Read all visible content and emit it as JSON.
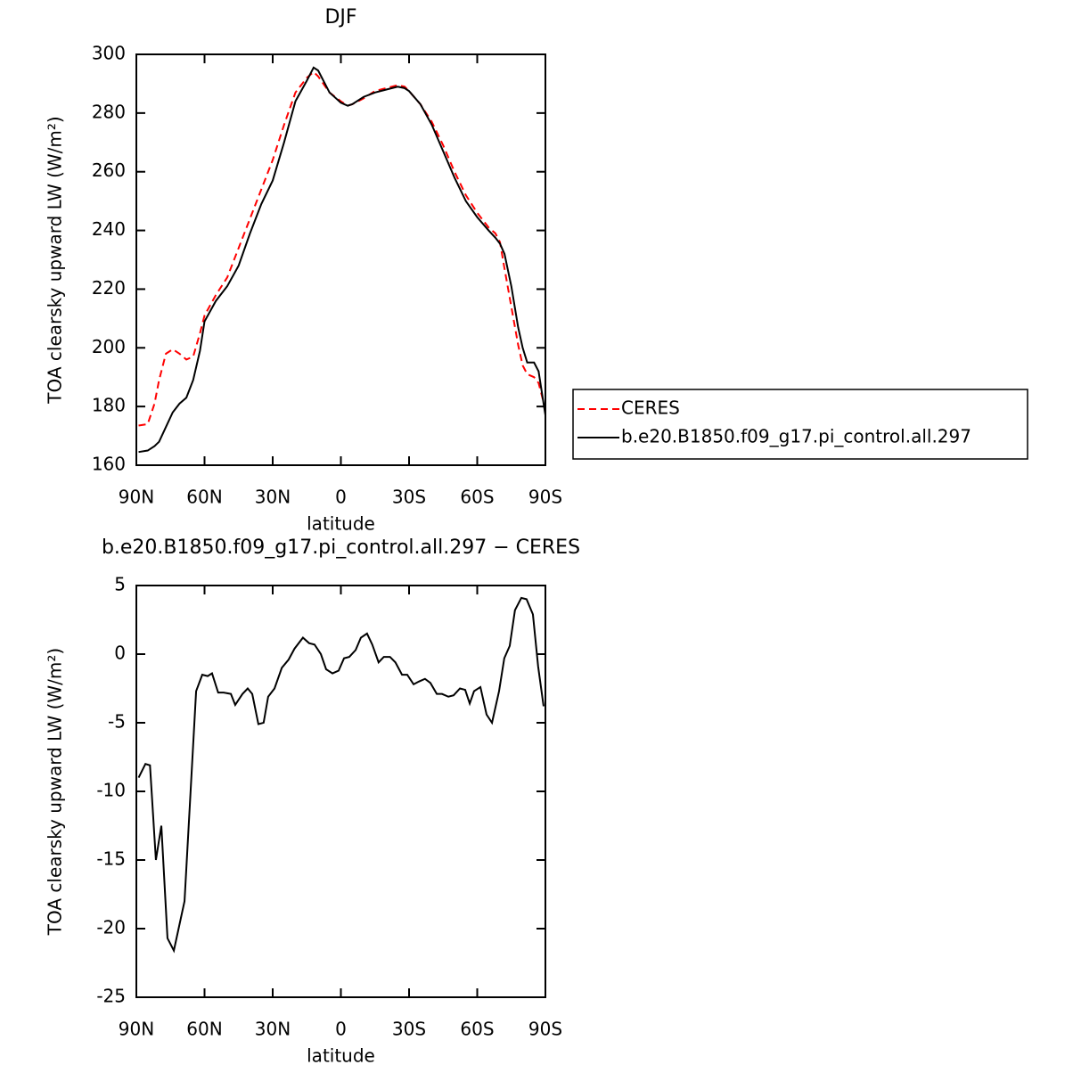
{
  "chart_data": [
    {
      "type": "line",
      "title": "DJF",
      "xlabel": "latitude",
      "ylabel": "TOA clearsky upward LW (W/m²)",
      "x": [
        89,
        85,
        82,
        80,
        77,
        74,
        71,
        68,
        65,
        62,
        60,
        55,
        50,
        45,
        40,
        35,
        30,
        25,
        20,
        15,
        12,
        10,
        5,
        0,
        -3,
        -5,
        -10,
        -15,
        -20,
        -25,
        -28,
        -30,
        -35,
        -40,
        -45,
        -50,
        -55,
        -60,
        -65,
        -68,
        -70,
        -72,
        -75,
        -78,
        -80,
        -82,
        -85,
        -87,
        -90
      ],
      "series": [
        {
          "name": "CERES",
          "color": "#ff0000",
          "linestyle": "dashed",
          "values": [
            173.5,
            174,
            181,
            189,
            198,
            199.5,
            198,
            196,
            197,
            205,
            211,
            218,
            224,
            234,
            244,
            254,
            264,
            276,
            287,
            292,
            294,
            292.5,
            287,
            284,
            282.5,
            283,
            285,
            287.5,
            288.5,
            289.5,
            289,
            287.5,
            283,
            277,
            269,
            260,
            252,
            246,
            241,
            239,
            236,
            227,
            214,
            201,
            194,
            191,
            190,
            188,
            179
          ]
        },
        {
          "name": "b.e20.B1850.f09_g17.pi_control.all.297",
          "color": "#000000",
          "linestyle": "solid",
          "values": [
            164.5,
            165,
            166.5,
            168,
            173,
            178,
            181,
            183,
            189,
            199,
            209,
            216,
            221,
            228,
            239,
            249,
            257,
            270,
            284,
            291,
            295.5,
            294.5,
            287,
            283.5,
            282.5,
            283,
            285.5,
            287,
            288,
            289,
            288.5,
            287.5,
            283,
            276,
            267,
            258,
            250,
            244.5,
            240,
            237.5,
            235.5,
            232,
            221,
            207,
            200,
            195,
            195,
            192,
            177
          ]
        }
      ],
      "xlim": [
        90,
        -90
      ],
      "xticks": [
        {
          "value": 90,
          "label": "90N"
        },
        {
          "value": 60,
          "label": "60N"
        },
        {
          "value": 30,
          "label": "30N"
        },
        0,
        {
          "value": -30,
          "label": "30S"
        },
        {
          "value": -60,
          "label": "60S"
        },
        {
          "value": -90,
          "label": "90S"
        }
      ],
      "ylim": [
        160,
        300
      ],
      "yticks": [
        160,
        180,
        200,
        220,
        240,
        260,
        280,
        300
      ],
      "legend": "outside-right"
    },
    {
      "type": "line",
      "title": "b.e20.B1850.f09_g17.pi_control.all.297 − CERES",
      "xlabel": "latitude",
      "ylabel": "TOA clearsky upward LW (W/m²)",
      "x": [
        89,
        86,
        84,
        81.4,
        79,
        76.3,
        73.5,
        68.8,
        63.7,
        61,
        58.6,
        56.7,
        54,
        51.6,
        48.4,
        46.5,
        43.3,
        41,
        39,
        36.3,
        34,
        32,
        29.2,
        26,
        23,
        20.4,
        16.7,
        14,
        11.6,
        8.8,
        6.5,
        3.7,
        1,
        -1.4,
        -3.7,
        -6.5,
        -8.8,
        -11.5,
        -13.8,
        -16.6,
        -18.9,
        -21.6,
        -24,
        -26.9,
        -29.2,
        -32,
        -34.3,
        -37,
        -39.4,
        -42.2,
        -44.5,
        -47.3,
        -49.6,
        -52.4,
        -54.7,
        -56.7,
        -58.6,
        -61.4,
        -64.1,
        -66.5,
        -69.6,
        -71.9,
        -74.3,
        -76.6,
        -79.4,
        -81.7,
        -84.5,
        -86.8,
        -89.2
      ],
      "series": [
        {
          "name": "b.e20.B1850.f09_g17.pi_control.all.297 − CERES",
          "color": "#000000",
          "linestyle": "solid",
          "values": [
            -9.0,
            -8.0,
            -8.1,
            -15,
            -12.5,
            -20.7,
            -21.6,
            -18,
            -2.7,
            -1.5,
            -1.6,
            -1.4,
            -2.8,
            -2.8,
            -2.9,
            -3.7,
            -2.9,
            -2.5,
            -2.9,
            -5.1,
            -5.0,
            -3.1,
            -2.5,
            -1.0,
            -0.4,
            0.4,
            1.2,
            0.8,
            0.7,
            0.0,
            -1.1,
            -1.4,
            -1.2,
            -0.3,
            -0.2,
            0.3,
            1.2,
            1.5,
            0.7,
            -0.6,
            -0.2,
            -0.2,
            -0.6,
            -1.5,
            -1.5,
            -2.2,
            -2.0,
            -1.8,
            -2.1,
            -2.9,
            -2.9,
            -3.1,
            -3.0,
            -2.5,
            -2.6,
            -3.6,
            -2.7,
            -2.4,
            -4.4,
            -5.0,
            -2.7,
            -0.3,
            0.6,
            3.2,
            4.1,
            4.0,
            2.9,
            -0.9,
            -3.8
          ]
        }
      ],
      "xlim": [
        90,
        -90
      ],
      "xticks": [
        {
          "value": 90,
          "label": "90N"
        },
        {
          "value": 60,
          "label": "60N"
        },
        {
          "value": 30,
          "label": "30N"
        },
        0,
        {
          "value": -30,
          "label": "30S"
        },
        {
          "value": -60,
          "label": "60S"
        },
        {
          "value": -90,
          "label": "90S"
        }
      ],
      "ylim": [
        -25,
        5
      ],
      "yticks": [
        -25,
        -20,
        -15,
        -10,
        -5,
        0,
        5
      ]
    }
  ]
}
